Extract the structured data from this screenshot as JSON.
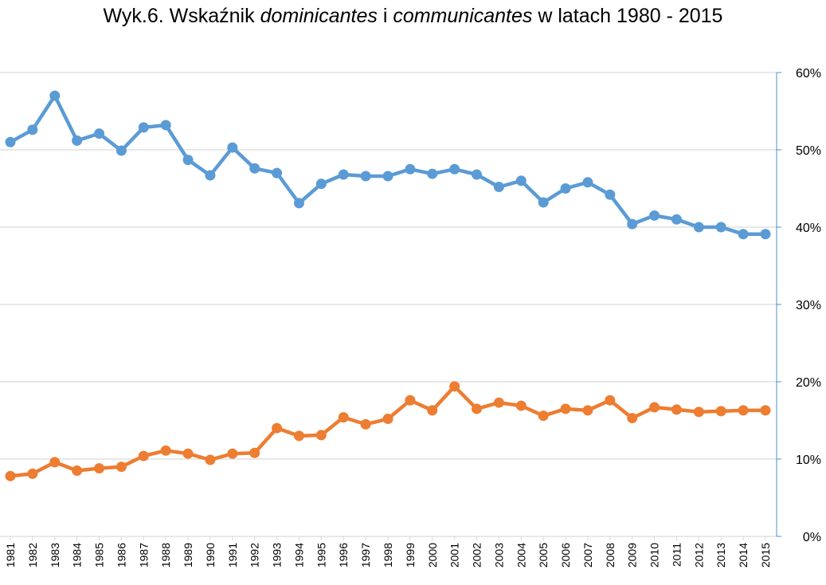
{
  "title": {
    "part1": "Wyk.6. Wskaźnik ",
    "part2": "dominicantes",
    "part3": " i ",
    "part4": "communicantes",
    "part5": " w latach 1980 - 2015"
  },
  "colors": {
    "series_dominicantes": "#5b9bd5",
    "series_communicantes": "#ed7d31",
    "gridline": "#d9d9d9",
    "axis": "#4a90c8"
  },
  "chart_data": {
    "type": "line",
    "title": "Wyk.6. Wskaźnik dominicantes i communicantes w latach 1980 - 2015",
    "x": [
      "1981",
      "1982",
      "1983",
      "1984",
      "1985",
      "1986",
      "1987",
      "1988",
      "1989",
      "1990",
      "1991",
      "1992",
      "1993",
      "1994",
      "1995",
      "1996",
      "1997",
      "1998",
      "1999",
      "2000",
      "2001",
      "2002",
      "2003",
      "2004",
      "2005",
      "2006",
      "2007",
      "2008",
      "2009",
      "2010",
      "2011",
      "2012",
      "2013",
      "2014",
      "2015"
    ],
    "series": [
      {
        "name": "",
        "values": [
          51.0,
          52.6,
          57.0,
          51.2,
          52.1,
          49.9,
          52.9,
          53.2,
          48.7,
          46.7,
          50.3,
          47.6,
          47.0,
          43.1,
          45.6,
          46.8,
          46.6,
          46.6,
          47.5,
          46.9,
          47.5,
          46.8,
          45.2,
          46.0,
          43.2,
          45.0,
          45.8,
          44.2,
          40.4,
          41.5,
          41.0,
          40.0,
          40.0,
          39.1,
          39.1
        ]
      },
      {
        "name": "",
        "values": [
          7.8,
          8.1,
          9.6,
          8.5,
          8.8,
          9.0,
          10.4,
          11.1,
          10.7,
          9.9,
          10.7,
          10.8,
          14.0,
          13.0,
          13.1,
          15.4,
          14.5,
          15.2,
          17.6,
          16.3,
          19.4,
          16.5,
          17.3,
          16.9,
          15.6,
          16.5,
          16.3,
          17.6,
          15.3,
          16.7,
          16.4,
          16.1,
          16.2,
          16.3,
          16.3
        ]
      }
    ],
    "ylim": [
      0,
      60
    ],
    "y_ticks": [
      "0%",
      "10%",
      "20%",
      "30%",
      "40%",
      "50%",
      "60%"
    ],
    "y_axis_position": "right",
    "grid": true,
    "legend": "none"
  }
}
